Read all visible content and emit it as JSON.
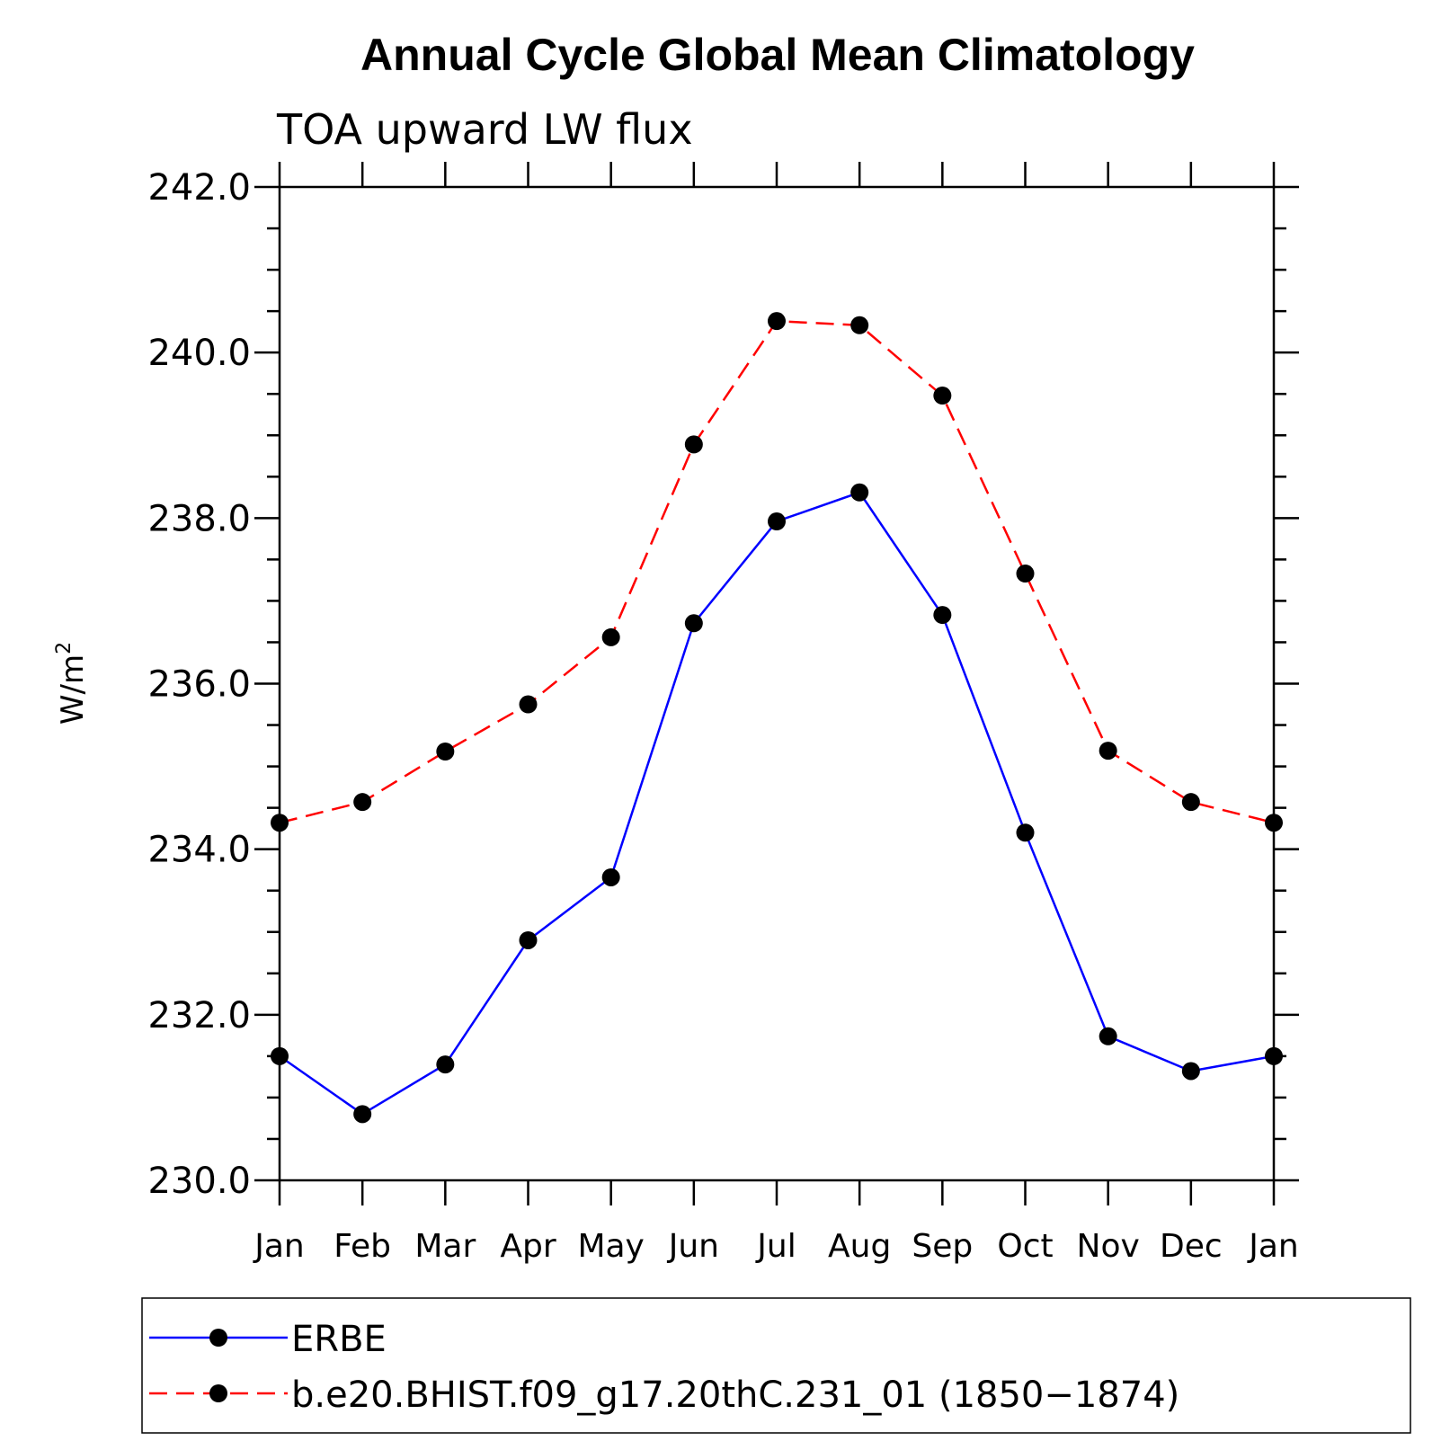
{
  "chart_data": {
    "type": "line",
    "title": "Annual Cycle Global Mean Climatology",
    "subtitle": "TOA upward LW flux",
    "ylabel": "W/m",
    "ylabel_superscript": "2",
    "xlabel": "",
    "categories": [
      "Jan",
      "Feb",
      "Mar",
      "Apr",
      "May",
      "Jun",
      "Jul",
      "Aug",
      "Sep",
      "Oct",
      "Nov",
      "Dec",
      "Jan"
    ],
    "ylim": [
      230.0,
      242.0
    ],
    "yticks": [
      "230.0",
      "232.0",
      "234.0",
      "236.0",
      "238.0",
      "240.0",
      "242.0"
    ],
    "series": [
      {
        "name": "ERBE",
        "color": "#0000ff",
        "style": "solid",
        "values": [
          231.5,
          230.8,
          231.4,
          232.9,
          233.66,
          236.73,
          237.96,
          238.31,
          236.83,
          234.2,
          231.74,
          231.32,
          231.5
        ]
      },
      {
        "name": "b.e20.BHIST.f09_g17.20thC.231_01 (1850−1874)",
        "color": "#ff0000",
        "style": "dashed",
        "values": [
          234.32,
          234.57,
          235.18,
          235.75,
          236.56,
          238.89,
          240.38,
          240.33,
          239.48,
          237.33,
          235.19,
          234.57,
          234.32
        ]
      }
    ],
    "legend_position": "bottom",
    "grid": false
  }
}
